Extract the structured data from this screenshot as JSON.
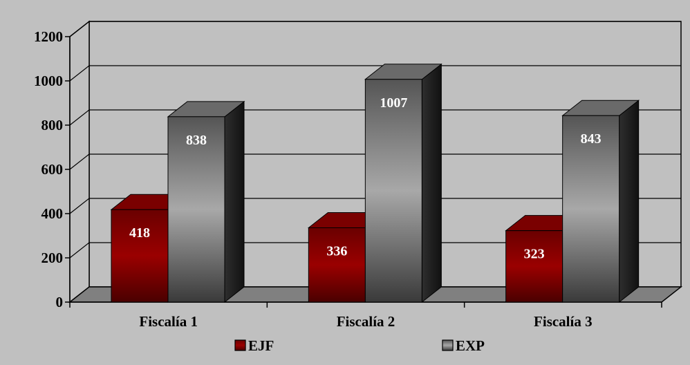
{
  "chart_data": {
    "type": "bar",
    "title": "",
    "xlabel": "",
    "ylabel": "",
    "categories": [
      "Fiscalía 1",
      "Fiscalía 2",
      "Fiscalía 3"
    ],
    "series": [
      {
        "name": "EJF",
        "values": [
          418,
          336,
          323
        ],
        "color": "#8b0000"
      },
      {
        "name": "EXP",
        "values": [
          838,
          1007,
          843
        ],
        "color": "#808080"
      }
    ],
    "ylim": [
      0,
      1200
    ],
    "yticks": [
      0,
      200,
      400,
      600,
      800,
      1000,
      1200
    ],
    "grid": true,
    "legend_position": "bottom",
    "style": "3d-column",
    "background_color": "#c0c0c0"
  }
}
